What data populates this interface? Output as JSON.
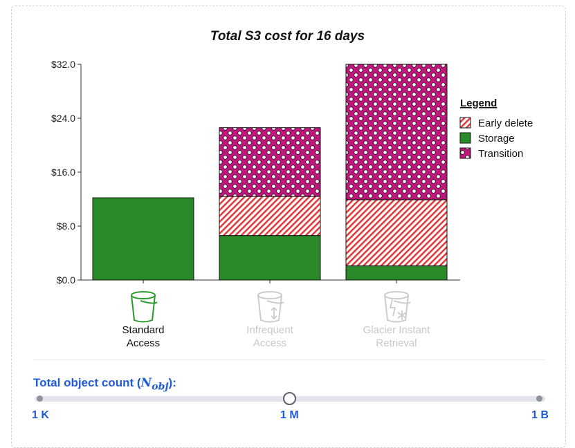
{
  "chart_data": {
    "type": "bar",
    "stacked": true,
    "title": "Total S3 cost for 16 days",
    "categories": [
      "Standard Access",
      "Infrequent Access",
      "Glacier Instant Retrieval"
    ],
    "category_lines": [
      [
        "Standard",
        "Access"
      ],
      [
        "Infrequent",
        "Access"
      ],
      [
        "Glacier Instant",
        "Retrieval"
      ]
    ],
    "category_active": [
      true,
      false,
      false
    ],
    "series": [
      {
        "name": "Storage",
        "color": "#2a8a2a",
        "values": [
          12.2,
          6.6,
          2.1
        ]
      },
      {
        "name": "Early delete",
        "color": "#e23a3a",
        "values": [
          0,
          5.8,
          9.8
        ]
      },
      {
        "name": "Transition",
        "color": "#c0167e",
        "values": [
          0,
          10.2,
          20.1
        ]
      }
    ],
    "ylim": [
      0,
      32
    ],
    "yticks": [
      0,
      8,
      16,
      24,
      32
    ],
    "ytick_labels": [
      "$0.0",
      "$8.0",
      "$16.0",
      "$24.0",
      "$32.0"
    ],
    "legend": {
      "title": "Legend",
      "placement": "right",
      "entries": [
        "Early delete",
        "Storage",
        "Transition"
      ]
    }
  },
  "slider": {
    "label_text": "Total object count (",
    "label_var": "N",
    "label_sub": "obj",
    "label_end": "):",
    "min_label": "1 K",
    "mid_label": "1 M",
    "max_label": "1 B",
    "value": "1 M",
    "accent": "#1f5bd6"
  }
}
